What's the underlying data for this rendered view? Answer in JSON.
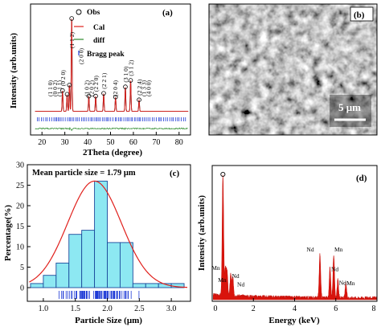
{
  "chart_data": [
    {
      "panel": "(a)",
      "type": "line",
      "xlabel": "2Theta (degree)",
      "ylabel": "Intensity (arb.units)",
      "xlim": [
        15,
        85
      ],
      "xticks": [
        20,
        30,
        40,
        50,
        60,
        70,
        80
      ],
      "legend": [
        "Obs",
        "Cal",
        "diff",
        "Bragg peak"
      ],
      "legend_position": "top-right",
      "series": [
        {
          "name": "Obs",
          "x": [
            29.0,
            31.0,
            32.0,
            33.0,
            40.5,
            43.5,
            47.0,
            52.2,
            56.5,
            58.8,
            62.5
          ],
          "y": [
            0.22,
            0.18,
            0.28,
            1.0,
            0.16,
            0.16,
            0.19,
            0.15,
            0.26,
            0.33,
            0.12
          ]
        },
        {
          "name": "Cal",
          "x": [
            29.0,
            31.0,
            32.0,
            33.0,
            40.5,
            43.5,
            47.0,
            52.2,
            56.5,
            58.8,
            62.5
          ],
          "y": [
            0.22,
            0.18,
            0.28,
            1.0,
            0.16,
            0.16,
            0.19,
            0.15,
            0.26,
            0.33,
            0.12
          ]
        },
        {
          "name": "diff"
        },
        {
          "name": "Bragg peak"
        }
      ],
      "peak_labels": [
        {
          "text": "(1 1 0)",
          "x": 23.5
        },
        {
          "text": "(0 0 2)",
          "x": 25.5
        },
        {
          "text": "(1 1 1)",
          "x": 27.5
        },
        {
          "text": "(0 2 0)",
          "x": 29.0
        },
        {
          "text": "(1 1 2)",
          "x": 33.0
        },
        {
          "text": "(2 0 0)",
          "x": 37.0
        },
        {
          "text": "(1 0 2)",
          "x": 39.5
        },
        {
          "text": "(2 0 2)",
          "x": 41.5
        },
        {
          "text": "(2 2 0)",
          "x": 43.5
        },
        {
          "text": "(2 2 1)",
          "x": 47.0
        },
        {
          "text": "(2 0 4)",
          "x": 52.0
        },
        {
          "text": "(3 1 0)",
          "x": 56.5
        },
        {
          "text": "(3 1 2)",
          "x": 58.8
        },
        {
          "text": "(2 2 4)",
          "x": 62.5
        },
        {
          "text": "(1 3 3)",
          "x": 64.5
        },
        {
          "text": "(4 0 0)",
          "x": 66.5
        }
      ]
    },
    {
      "panel": "(c)",
      "type": "bar",
      "xlabel": "Particle Size (μm)",
      "ylabel": "Percentage(%)",
      "xlim": [
        0.75,
        3.3
      ],
      "ylim": [
        0,
        30
      ],
      "xticks": [
        "1.0",
        "1.5",
        "2.0",
        "2.5",
        "3.0"
      ],
      "yticks": [
        "0",
        "5",
        "10",
        "15",
        "20",
        "25",
        "30"
      ],
      "annotation": "Mean particle size = 1.79 μm",
      "bins": [
        {
          "x0": 0.8,
          "x1": 1.0,
          "value": 1
        },
        {
          "x0": 1.0,
          "x1": 1.2,
          "value": 3
        },
        {
          "x0": 1.2,
          "x1": 1.4,
          "value": 6
        },
        {
          "x0": 1.4,
          "x1": 1.6,
          "value": 13
        },
        {
          "x0": 1.6,
          "x1": 1.8,
          "value": 14
        },
        {
          "x0": 1.8,
          "x1": 2.0,
          "value": 26
        },
        {
          "x0": 2.0,
          "x1": 2.2,
          "value": 11
        },
        {
          "x0": 2.2,
          "x1": 2.4,
          "value": 11
        },
        {
          "x0": 2.4,
          "x1": 2.6,
          "value": 1
        },
        {
          "x0": 2.6,
          "x1": 2.8,
          "value": 1
        },
        {
          "x0": 2.8,
          "x1": 3.0,
          "value": 1
        },
        {
          "x0": 3.0,
          "x1": 3.2,
          "value": 1
        }
      ],
      "fit_curve": {
        "type": "gaussian",
        "mean": 1.8,
        "sigma": 0.42,
        "peak": 26
      }
    },
    {
      "panel": "(d)",
      "type": "line",
      "xlabel": "Energy (keV)",
      "ylabel": "Intensity (arb.units)",
      "xlim": [
        0,
        8
      ],
      "xticks": [
        "0",
        "2",
        "4",
        "6",
        "8"
      ],
      "peaks": [
        {
          "x": 0.52,
          "y": 1.0,
          "label": "O"
        },
        {
          "x": 0.64,
          "y": 0.22,
          "label": "Mn"
        },
        {
          "x": 0.72,
          "y": 0.2,
          "label": "Mn"
        },
        {
          "x": 0.9,
          "y": 0.18,
          "label": "Nd"
        },
        {
          "x": 1.0,
          "y": 0.15,
          "label": "Nd"
        },
        {
          "x": 5.23,
          "y": 0.36,
          "label": "Nd"
        },
        {
          "x": 5.9,
          "y": 0.36,
          "label": "Mn"
        },
        {
          "x": 5.72,
          "y": 0.25,
          "label": "Nd"
        },
        {
          "x": 6.1,
          "y": 0.15,
          "label": "Nd"
        },
        {
          "x": 6.49,
          "y": 0.12,
          "label": "Mn"
        }
      ]
    }
  ],
  "sem_image": {
    "panel": "(b)",
    "scale_bar": "5 μm"
  }
}
